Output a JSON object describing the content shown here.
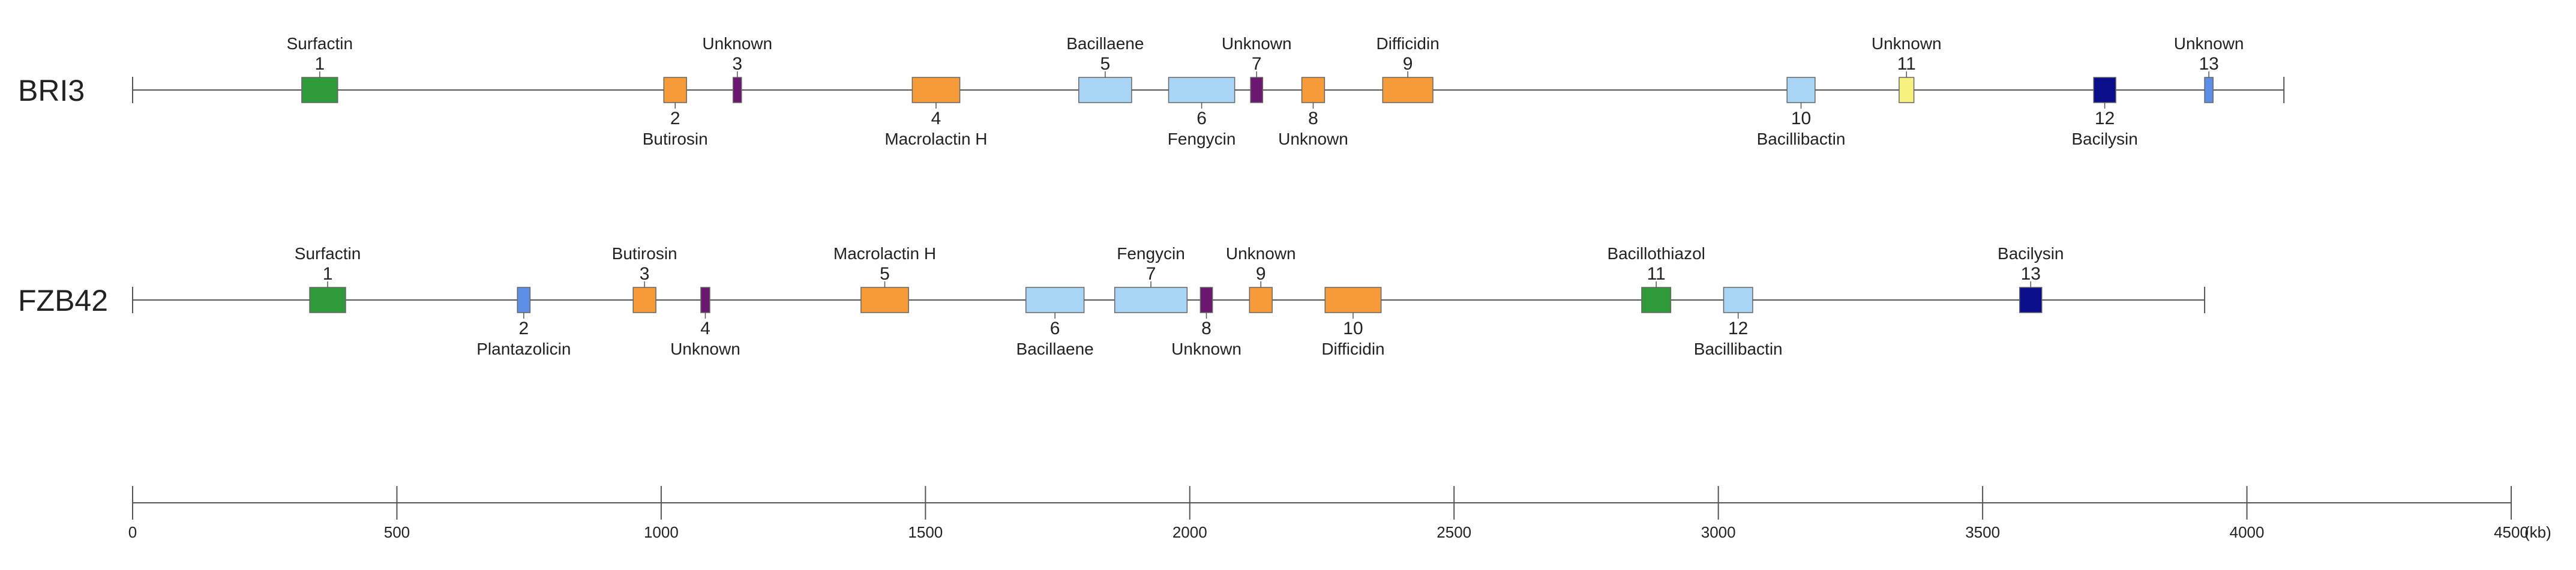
{
  "genomes": [
    {
      "name": "BRI3",
      "length_kb": 4070,
      "clusters": [
        {
          "num": "1",
          "label": "Surfactin",
          "start": 320,
          "end": 388,
          "color": "#2e9a3a",
          "label_pos": "above"
        },
        {
          "num": "2",
          "label": "Butirosin",
          "start": 1005,
          "end": 1048,
          "color": "#f79a38",
          "label_pos": "below"
        },
        {
          "num": "3",
          "label": "Unknown",
          "start": 1136,
          "end": 1152,
          "color": "#6a176f",
          "label_pos": "above"
        },
        {
          "num": "4",
          "label": "Macrolactin H",
          "start": 1475,
          "end": 1565,
          "color": "#f79a38",
          "label_pos": "below"
        },
        {
          "num": "5",
          "label": "Bacillaene",
          "start": 1790,
          "end": 1890,
          "color": "#a8d4f6",
          "label_pos": "above"
        },
        {
          "num": "6",
          "label": "Fengycin",
          "start": 1960,
          "end": 2085,
          "color": "#a8d4f6",
          "label_pos": "below"
        },
        {
          "num": "7",
          "label": "Unknown",
          "start": 2115,
          "end": 2138,
          "color": "#6a176f",
          "label_pos": "above"
        },
        {
          "num": "8",
          "label": "Unknown",
          "start": 2212,
          "end": 2255,
          "color": "#f79a38",
          "label_pos": "below"
        },
        {
          "num": "9",
          "label": "Difficidin",
          "start": 2365,
          "end": 2460,
          "color": "#f79a38",
          "label_pos": "above"
        },
        {
          "num": "10",
          "label": "Bacillibactin",
          "start": 3130,
          "end": 3183,
          "color": "#a8d4f6",
          "label_pos": "below"
        },
        {
          "num": "11",
          "label": "Unknown",
          "start": 3342,
          "end": 3370,
          "color": "#f7f280",
          "label_pos": "above"
        },
        {
          "num": "12",
          "label": "Bacilysin",
          "start": 3710,
          "end": 3752,
          "color": "#0b0e8a",
          "label_pos": "below"
        },
        {
          "num": "13",
          "label": "Unknown",
          "start": 3920,
          "end": 3936,
          "color": "#5d8ee6",
          "label_pos": "above"
        }
      ]
    },
    {
      "name": "FZB42",
      "length_kb": 3920,
      "clusters": [
        {
          "num": "1",
          "label": "Surfactin",
          "start": 335,
          "end": 403,
          "color": "#2e9a3a",
          "label_pos": "above"
        },
        {
          "num": "2",
          "label": "Plantazolicin",
          "start": 728,
          "end": 752,
          "color": "#5d8ee6",
          "label_pos": "below"
        },
        {
          "num": "3",
          "label": "Butirosin",
          "start": 947,
          "end": 990,
          "color": "#f79a38",
          "label_pos": "above"
        },
        {
          "num": "4",
          "label": "Unknown",
          "start": 1075,
          "end": 1092,
          "color": "#6a176f",
          "label_pos": "below"
        },
        {
          "num": "5",
          "label": "Macrolactin H",
          "start": 1378,
          "end": 1468,
          "color": "#f79a38",
          "label_pos": "above"
        },
        {
          "num": "6",
          "label": "Bacillaene",
          "start": 1690,
          "end": 1800,
          "color": "#a8d4f6",
          "label_pos": "below"
        },
        {
          "num": "7",
          "label": "Fengycin",
          "start": 1858,
          "end": 1995,
          "color": "#a8d4f6",
          "label_pos": "above"
        },
        {
          "num": "8",
          "label": "Unknown",
          "start": 2020,
          "end": 2043,
          "color": "#6a176f",
          "label_pos": "below"
        },
        {
          "num": "9",
          "label": "Unknown",
          "start": 2113,
          "end": 2156,
          "color": "#f79a38",
          "label_pos": "above"
        },
        {
          "num": "10",
          "label": "Difficidin",
          "start": 2256,
          "end": 2362,
          "color": "#f79a38",
          "label_pos": "below"
        },
        {
          "num": "11",
          "label": "Bacillothiazol",
          "start": 2855,
          "end": 2910,
          "color": "#2e9a3a",
          "label_pos": "above"
        },
        {
          "num": "12",
          "label": "Bacillibactin",
          "start": 3010,
          "end": 3065,
          "color": "#a8d4f6",
          "label_pos": "below"
        },
        {
          "num": "13",
          "label": "Bacilysin",
          "start": 3570,
          "end": 3612,
          "color": "#0b0e8a",
          "label_pos": "above"
        }
      ]
    }
  ],
  "scale": {
    "min": 0,
    "max": 4500,
    "ticks": [
      0,
      500,
      1000,
      1500,
      2000,
      2500,
      3000,
      3500,
      4000,
      4500
    ],
    "tick_labels": [
      "0",
      "500",
      "1000",
      "1500",
      "2000",
      "2500",
      "3000",
      "3500",
      "4000",
      "4500"
    ],
    "unit": "(kb)"
  },
  "colors": {
    "line": "#555555",
    "stroke": "#666666"
  }
}
